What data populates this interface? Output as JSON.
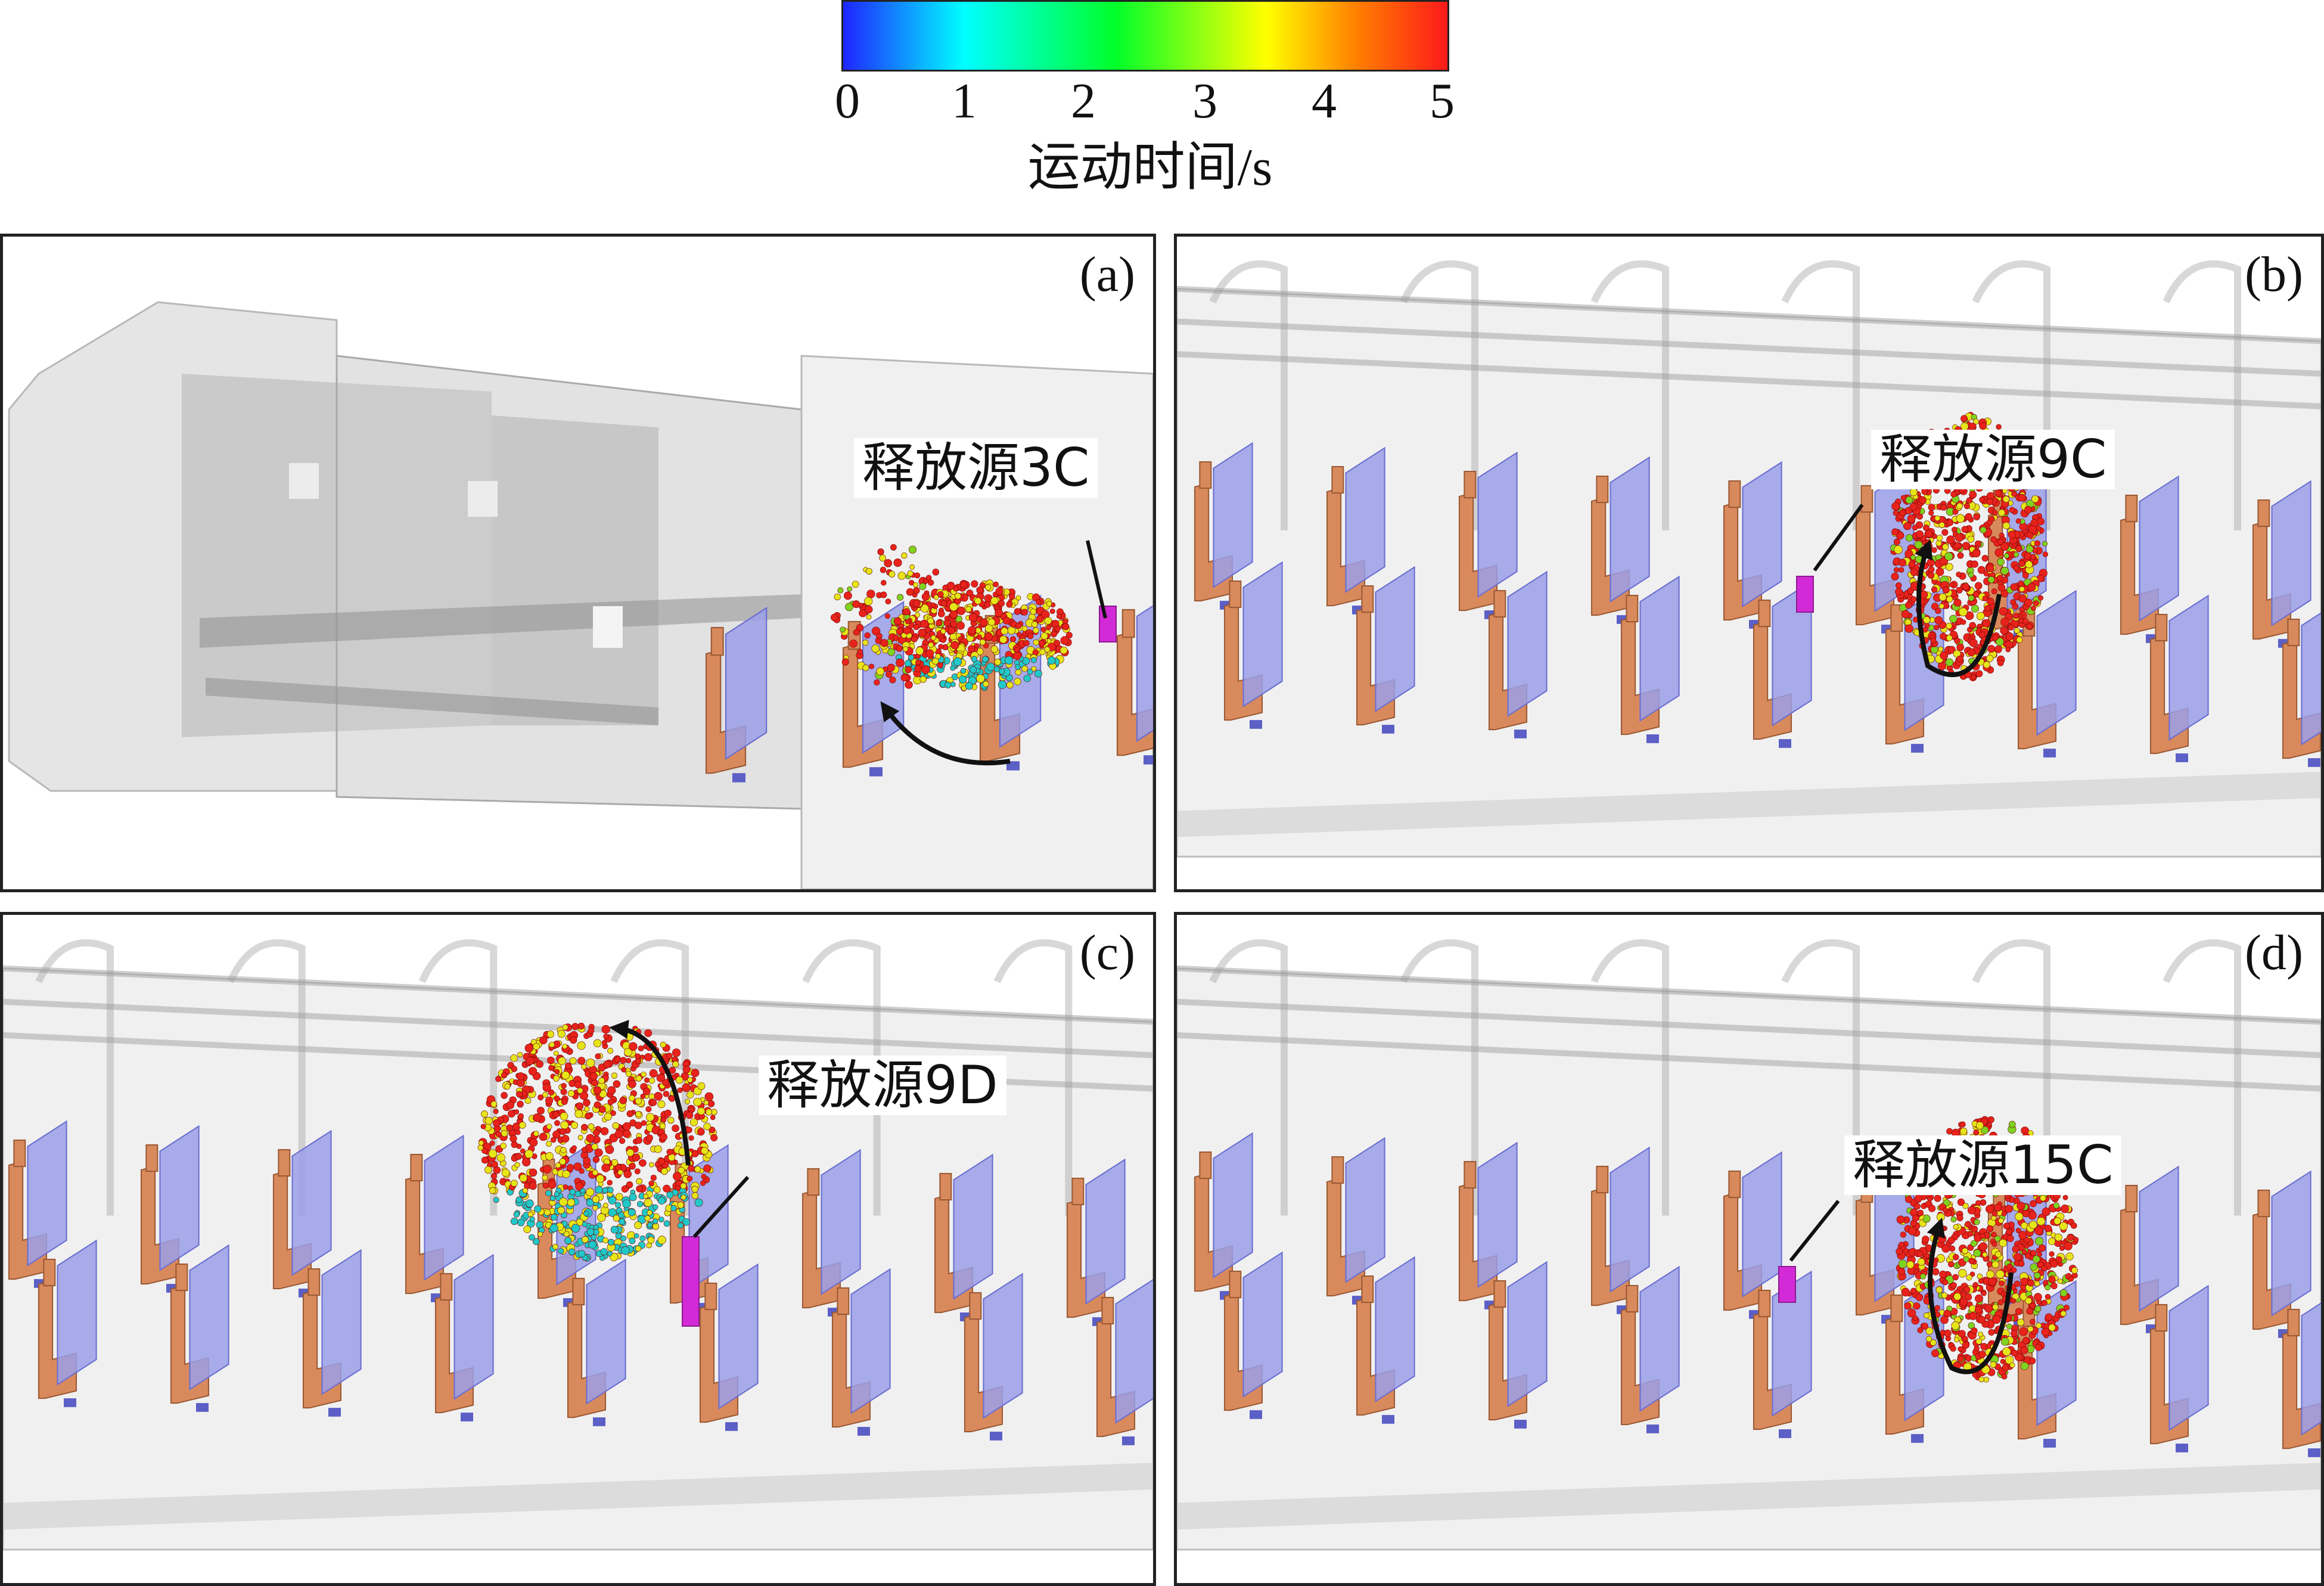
{
  "colorbar": {
    "ticks": [
      "0",
      "1",
      "2",
      "3",
      "4",
      "5"
    ],
    "title": "运动时间/s",
    "colors": [
      "#1f25ff",
      "#00ffff",
      "#00ff2a",
      "#ffff00",
      "#ff7f00",
      "#ff1a1a"
    ]
  },
  "panels": [
    {
      "id": "a",
      "label": "(a)",
      "source": "释放源3C"
    },
    {
      "id": "b",
      "label": "(b)",
      "source": "释放源9C"
    },
    {
      "id": "c",
      "label": "(c)",
      "source": "释放源9D"
    },
    {
      "id": "d",
      "label": "(d)",
      "source": "释放源15C"
    }
  ],
  "colors": {
    "seat_back": "#9a9fe8",
    "seat_frame": "#d98a5c",
    "cabin": "#d3d3d3",
    "source": "#d22ad6",
    "particles_hot": "#e8231c",
    "particles_mid": "#e5e51a",
    "particles_cold": "#20c8c8",
    "arrow": "#111111"
  }
}
